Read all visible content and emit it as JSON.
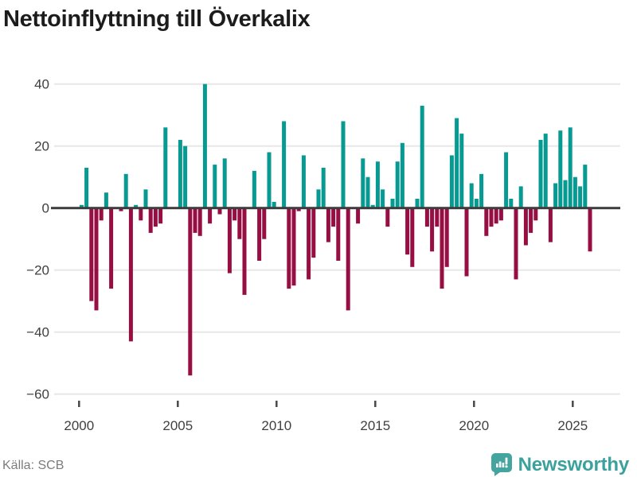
{
  "title": "Nettoinflyttning till Överkalix",
  "source": "Källa: SCB",
  "branding": {
    "name": "Newsworthy",
    "wordmark_color": "#3ba19c",
    "icon_color": "#44a5a0"
  },
  "chart_data": {
    "type": "bar",
    "title": "Nettoinflyttning till Överkalix",
    "x_start_year": 2000,
    "points_per_year": 4,
    "values": [
      1,
      13,
      -30,
      -33,
      -4,
      5,
      -26,
      0,
      -1,
      11,
      -43,
      1,
      -4,
      6,
      -8,
      -6,
      -5,
      26,
      0,
      0,
      22,
      20,
      -54,
      -8,
      -9,
      40,
      -5,
      14,
      -2,
      16,
      -21,
      -4,
      -10,
      -28,
      0,
      12,
      -17,
      -10,
      18,
      2,
      0,
      28,
      -26,
      -25,
      -1,
      17,
      -23,
      -16,
      6,
      13,
      -11,
      -6,
      -17,
      28,
      -33,
      0,
      -5,
      16,
      10,
      1,
      15,
      6,
      -6,
      3,
      15,
      21,
      -15,
      -19,
      3,
      33,
      -6,
      -14,
      -6,
      -26,
      -19,
      17,
      29,
      24,
      -22,
      8,
      3,
      11,
      -9,
      -6,
      -5,
      -4,
      18,
      3,
      -23,
      7,
      -12,
      -8,
      -4,
      22,
      24,
      -11,
      8,
      25,
      9,
      26,
      10,
      7,
      14,
      -14
    ],
    "x_tick_labels": [
      "2000",
      "2005",
      "2010",
      "2015",
      "2020",
      "2025"
    ],
    "y_ticks": [
      {
        "value": 40,
        "label": "40"
      },
      {
        "value": 20,
        "label": "20"
      },
      {
        "value": 0,
        "label": "0"
      },
      {
        "value": -20,
        "label": "−20"
      },
      {
        "value": -40,
        "label": "−40"
      },
      {
        "value": -60,
        "label": "−60"
      }
    ],
    "ylim": [
      -60,
      45
    ],
    "xlabel": "",
    "ylabel": "",
    "grid": "horizontal",
    "legend": "none",
    "colors": {
      "positive": "#069a92",
      "negative": "#970e43",
      "gridline": "#e7e7e7",
      "zero_line": "#3d3d3d",
      "axis_text": "#404040",
      "tick_mark": "#4a4a4a"
    }
  }
}
